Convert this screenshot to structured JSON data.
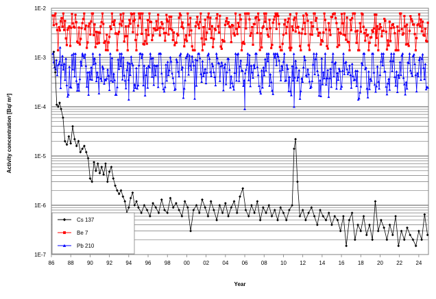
{
  "chart_data": {
    "type": "scatter",
    "xlabel": "Year",
    "ylabel": "Activity concentration [Bq/ m³]",
    "x_tick_labels": [
      "86",
      "88",
      "90",
      "92",
      "94",
      "96",
      "98",
      "00",
      "02",
      "04",
      "06",
      "08",
      "10",
      "12",
      "14",
      "16",
      "18",
      "20",
      "22",
      "24"
    ],
    "x_range": [
      1986,
      2025
    ],
    "y_scale": "log",
    "y_range": [
      1e-07,
      0.01
    ],
    "y_tick_labels": [
      "1E-7",
      "1E-6",
      "1E-5",
      "1E-4",
      "1E-3",
      "1E-2"
    ],
    "grid": "horizontal, major and minor",
    "legend_position": "bottom-left",
    "series": [
      {
        "name": "Cs 137",
        "color": "#000000",
        "marker": "diamond",
        "points": [
          [
            1986.25,
            0.0013
          ],
          [
            1986.4,
            0.0005
          ],
          [
            1986.55,
            0.00011
          ],
          [
            1986.7,
            0.0001
          ],
          [
            1986.85,
            0.00012
          ],
          [
            1987.0,
            9e-05
          ],
          [
            1987.2,
            6e-05
          ],
          [
            1987.4,
            2e-05
          ],
          [
            1987.6,
            1.7e-05
          ],
          [
            1987.8,
            2.5e-05
          ],
          [
            1988.0,
            1.8e-05
          ],
          [
            1988.2,
            4e-05
          ],
          [
            1988.4,
            2.2e-05
          ],
          [
            1988.6,
            1.6e-05
          ],
          [
            1988.8,
            2e-05
          ],
          [
            1989.0,
            1.2e-05
          ],
          [
            1989.2,
            1.4e-05
          ],
          [
            1989.4,
            1.6e-05
          ],
          [
            1989.6,
            1.2e-05
          ],
          [
            1989.8,
            9e-06
          ],
          [
            1990.0,
            3.5e-06
          ],
          [
            1990.2,
            3e-06
          ],
          [
            1990.4,
            7.5e-06
          ],
          [
            1990.6,
            5e-06
          ],
          [
            1990.8,
            7e-06
          ],
          [
            1991.0,
            4.5e-06
          ],
          [
            1991.2,
            6e-06
          ],
          [
            1991.4,
            4.2e-06
          ],
          [
            1991.6,
            7e-06
          ],
          [
            1991.8,
            3e-06
          ],
          [
            1992.0,
            4.8e-06
          ],
          [
            1992.2,
            6e-06
          ],
          [
            1992.4,
            3.5e-06
          ],
          [
            1992.6,
            2.5e-06
          ],
          [
            1992.8,
            2e-06
          ],
          [
            1993.0,
            1.7e-06
          ],
          [
            1993.2,
            2e-06
          ],
          [
            1993.4,
            1.5e-06
          ],
          [
            1993.6,
            1.2e-06
          ],
          [
            1993.8,
            7e-07
          ],
          [
            1994.0,
            9e-07
          ],
          [
            1994.2,
            1.4e-06
          ],
          [
            1994.4,
            1.8e-06
          ],
          [
            1994.6,
            1e-06
          ],
          [
            1994.8,
            1.2e-06
          ],
          [
            1995.0,
            9e-07
          ],
          [
            1995.3,
            7e-07
          ],
          [
            1995.6,
            1e-06
          ],
          [
            1995.9,
            8e-07
          ],
          [
            1996.2,
            6e-07
          ],
          [
            1996.5,
            1.1e-06
          ],
          [
            1996.8,
            9e-07
          ],
          [
            1997.1,
            7e-07
          ],
          [
            1997.4,
            1.3e-06
          ],
          [
            1997.7,
            8e-07
          ],
          [
            1998.0,
            7e-07
          ],
          [
            1998.3,
            1.4e-06
          ],
          [
            1998.6,
            9e-07
          ],
          [
            1998.9,
            1.1e-06
          ],
          [
            1999.2,
            8e-07
          ],
          [
            1999.5,
            6e-07
          ],
          [
            1999.8,
            1.2e-06
          ],
          [
            2000.1,
            9e-07
          ],
          [
            2000.4,
            3e-07
          ],
          [
            2000.7,
            8e-07
          ],
          [
            2001.0,
            1e-06
          ],
          [
            2001.3,
            7e-07
          ],
          [
            2001.6,
            1.3e-06
          ],
          [
            2001.9,
            9e-07
          ],
          [
            2002.2,
            6e-07
          ],
          [
            2002.5,
            1.2e-06
          ],
          [
            2002.8,
            8e-07
          ],
          [
            2003.1,
            5e-07
          ],
          [
            2003.4,
            1e-06
          ],
          [
            2003.7,
            7e-07
          ],
          [
            2004.0,
            1.1e-06
          ],
          [
            2004.3,
            6e-07
          ],
          [
            2004.6,
            9e-07
          ],
          [
            2004.9,
            1.2e-06
          ],
          [
            2005.2,
            7e-07
          ],
          [
            2005.5,
            1.5e-06
          ],
          [
            2005.8,
            2.2e-06
          ],
          [
            2006.1,
            8e-07
          ],
          [
            2006.4,
            6e-07
          ],
          [
            2006.7,
            1e-06
          ],
          [
            2007.0,
            7e-07
          ],
          [
            2007.3,
            1.2e-06
          ],
          [
            2007.6,
            5e-07
          ],
          [
            2007.9,
            9e-07
          ],
          [
            2008.2,
            7e-07
          ],
          [
            2008.5,
            1e-06
          ],
          [
            2008.8,
            6e-07
          ],
          [
            2009.1,
            8e-07
          ],
          [
            2009.4,
            5e-07
          ],
          [
            2009.7,
            9e-07
          ],
          [
            2010.0,
            7e-07
          ],
          [
            2010.3,
            5e-07
          ],
          [
            2010.6,
            8e-07
          ],
          [
            2010.9,
            1e-06
          ],
          [
            2011.1,
            1.4e-05
          ],
          [
            2011.25,
            2.2e-05
          ],
          [
            2011.45,
            3e-06
          ],
          [
            2011.7,
            6e-07
          ],
          [
            2012.0,
            8e-07
          ],
          [
            2012.3,
            5e-07
          ],
          [
            2012.6,
            7e-07
          ],
          [
            2012.9,
            9e-07
          ],
          [
            2013.2,
            6e-07
          ],
          [
            2013.5,
            4e-07
          ],
          [
            2013.8,
            8e-07
          ],
          [
            2014.1,
            6e-07
          ],
          [
            2014.4,
            5e-07
          ],
          [
            2014.7,
            7e-07
          ],
          [
            2015.0,
            4e-07
          ],
          [
            2015.3,
            6e-07
          ],
          [
            2015.6,
            5e-07
          ],
          [
            2015.9,
            3e-07
          ],
          [
            2016.2,
            6e-07
          ],
          [
            2016.5,
            1.5e-07
          ],
          [
            2016.8,
            5e-07
          ],
          [
            2017.1,
            7e-07
          ],
          [
            2017.4,
            2e-07
          ],
          [
            2017.7,
            4e-07
          ],
          [
            2018.0,
            3e-07
          ],
          [
            2018.3,
            6e-07
          ],
          [
            2018.6,
            2.5e-07
          ],
          [
            2018.9,
            4e-07
          ],
          [
            2019.2,
            2e-07
          ],
          [
            2019.5,
            1.2e-06
          ],
          [
            2019.8,
            3e-07
          ],
          [
            2020.1,
            5e-07
          ],
          [
            2020.4,
            3.5e-07
          ],
          [
            2020.7,
            2e-07
          ],
          [
            2021.0,
            4e-07
          ],
          [
            2021.3,
            2.5e-07
          ],
          [
            2021.6,
            6e-07
          ],
          [
            2021.9,
            1.5e-07
          ],
          [
            2022.2,
            3e-07
          ],
          [
            2022.5,
            2e-07
          ],
          [
            2022.8,
            3.5e-07
          ],
          [
            2023.1,
            2.5e-07
          ],
          [
            2023.4,
            2e-07
          ],
          [
            2023.7,
            1.5e-07
          ],
          [
            2024.0,
            3e-07
          ],
          [
            2024.3,
            2e-07
          ],
          [
            2024.6,
            6.5e-07
          ],
          [
            2024.9,
            2.5e-07
          ]
        ]
      },
      {
        "name": "Be 7",
        "color": "#ff0000",
        "marker": "square",
        "band": {
          "center": 0.0037,
          "min": 0.0014,
          "max": 0.0078,
          "spread": 0.34,
          "step": 0.09,
          "period": 1.0,
          "amplitude": 0.22
        },
        "points": [
          [
            1994.55,
            0.0078
          ],
          [
            1997.9,
            0.0073
          ],
          [
            2009.3,
            0.0071
          ],
          [
            2010.7,
            0.0075
          ],
          [
            2019.6,
            0.0074
          ]
        ]
      },
      {
        "name": "Pb 210",
        "color": "#0000ff",
        "marker": "triangle",
        "band": {
          "center": 0.00052,
          "min": 0.00014,
          "max": 0.0012,
          "spread": 0.38,
          "step": 0.09,
          "period": 1.0,
          "amplitude": 0.2
        },
        "points": [
          [
            1986.9,
            0.0016
          ],
          [
            1989.2,
            0.0011
          ],
          [
            1994.0,
            0.00014
          ],
          [
            2006.0,
            9e-05
          ],
          [
            2011.1,
            0.0001
          ]
        ]
      }
    ]
  }
}
